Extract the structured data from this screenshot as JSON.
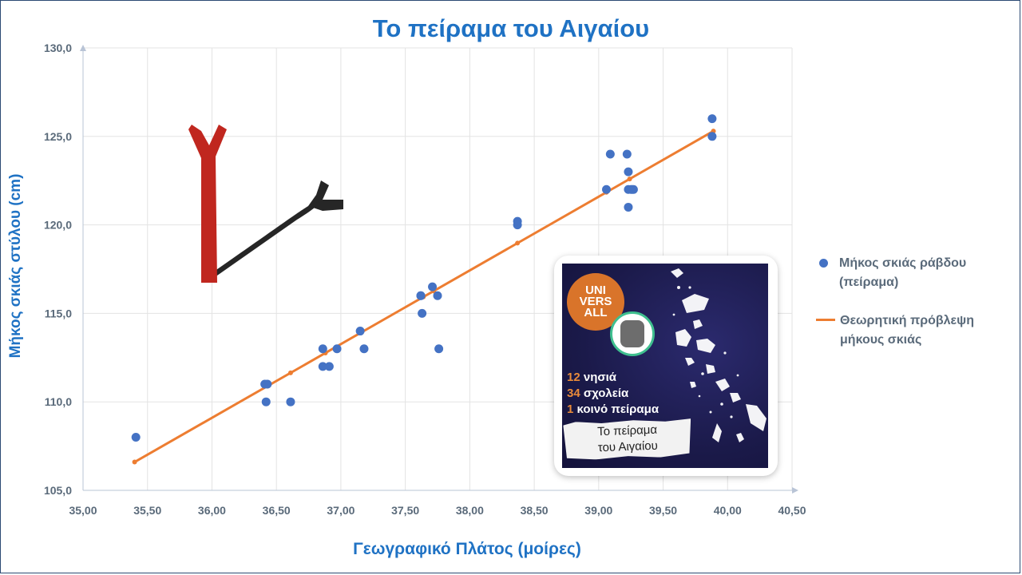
{
  "chart_data": {
    "type": "scatter",
    "title": "Το πείραμα του Αιγαίου",
    "xlabel": "Γεωγραφικό Πλάτος (μοίρες)",
    "ylabel": "Μήκος σκιάς στύλου (cm)",
    "xlim": [
      35.0,
      40.5
    ],
    "ylim": [
      105.0,
      130.0
    ],
    "xticks": [
      "35,00",
      "35,50",
      "36,00",
      "36,50",
      "37,00",
      "37,50",
      "38,00",
      "38,50",
      "39,00",
      "39,50",
      "40,00",
      "40,50"
    ],
    "yticks": [
      "105,0",
      "110,0",
      "115,0",
      "120,0",
      "125,0",
      "130,0"
    ],
    "grid": true,
    "legend_position": "right",
    "series": [
      {
        "name": "Μήκος σκιάς ράβδου (πείραμα)",
        "kind": "scatter",
        "color": "#4472c4",
        "points": [
          [
            35.41,
            108
          ],
          [
            36.41,
            111
          ],
          [
            36.43,
            111
          ],
          [
            36.42,
            110
          ],
          [
            36.61,
            110
          ],
          [
            36.86,
            113
          ],
          [
            36.86,
            112
          ],
          [
            36.91,
            112
          ],
          [
            36.97,
            113
          ],
          [
            37.15,
            114
          ],
          [
            37.18,
            113
          ],
          [
            37.62,
            116
          ],
          [
            37.62,
            116
          ],
          [
            37.63,
            115
          ],
          [
            37.71,
            116.5
          ],
          [
            37.75,
            116
          ],
          [
            37.76,
            113
          ],
          [
            38.37,
            120.2
          ],
          [
            38.37,
            120
          ],
          [
            39.06,
            122
          ],
          [
            39.09,
            124
          ],
          [
            39.22,
            124
          ],
          [
            39.23,
            123
          ],
          [
            39.23,
            122
          ],
          [
            39.23,
            121
          ],
          [
            39.25,
            122
          ],
          [
            39.26,
            122
          ],
          [
            39.27,
            122
          ],
          [
            39.88,
            126
          ],
          [
            39.88,
            125
          ]
        ]
      },
      {
        "name": "Θεωρητική πρόβλεψη μήκους σκιάς",
        "kind": "line",
        "color": "#ed7d31",
        "points": [
          [
            35.4,
            106.6
          ],
          [
            39.89,
            125.3
          ]
        ],
        "markers_x": [
          35.4,
          36.43,
          36.61,
          36.88,
          37.16,
          37.64,
          37.72,
          38.37,
          39.06,
          39.24,
          39.89
        ]
      }
    ]
  },
  "inset": {
    "badge_text": "UNI\nVERS\nALL",
    "stats": [
      {
        "num": "12",
        "label": "νησιά"
      },
      {
        "num": "34",
        "label": "σχολεία"
      },
      {
        "num": "1",
        "label": "κοινό πείραμα"
      }
    ],
    "paper_text": "Το πείραμα\nτου Αιγαίου"
  },
  "colors": {
    "accent": "#1f72c4",
    "stick_red": "#c0271f",
    "stick_black": "#262626"
  },
  "icons": {
    "stick_shadow": "stick-shadow-icon"
  }
}
